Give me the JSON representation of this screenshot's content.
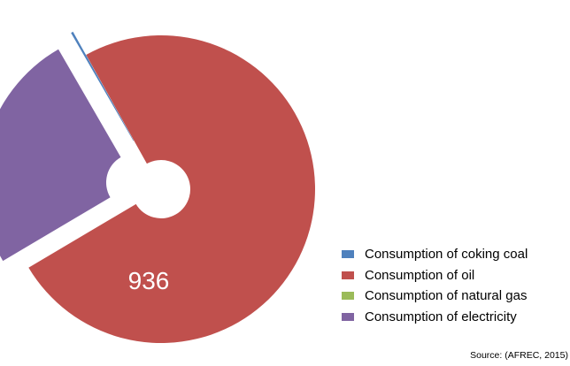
{
  "chart_data": {
    "type": "pie",
    "variant": "exploded-doughnut",
    "title": "",
    "data_label": "936",
    "legend_position": "right-bottom",
    "series": [
      {
        "name": "Consumption of coking coal",
        "value": 3,
        "color": "#4f81bd"
      },
      {
        "name": "Consumption of oil",
        "value": 936,
        "color": "#c0504d"
      },
      {
        "name": "Consumption of natural gas",
        "value": 0,
        "color": "#9bbb59"
      },
      {
        "name": "Consumption of electricity",
        "value": 316,
        "color": "#8064a2"
      }
    ]
  },
  "source": "Source: (AFREC, 2015)"
}
